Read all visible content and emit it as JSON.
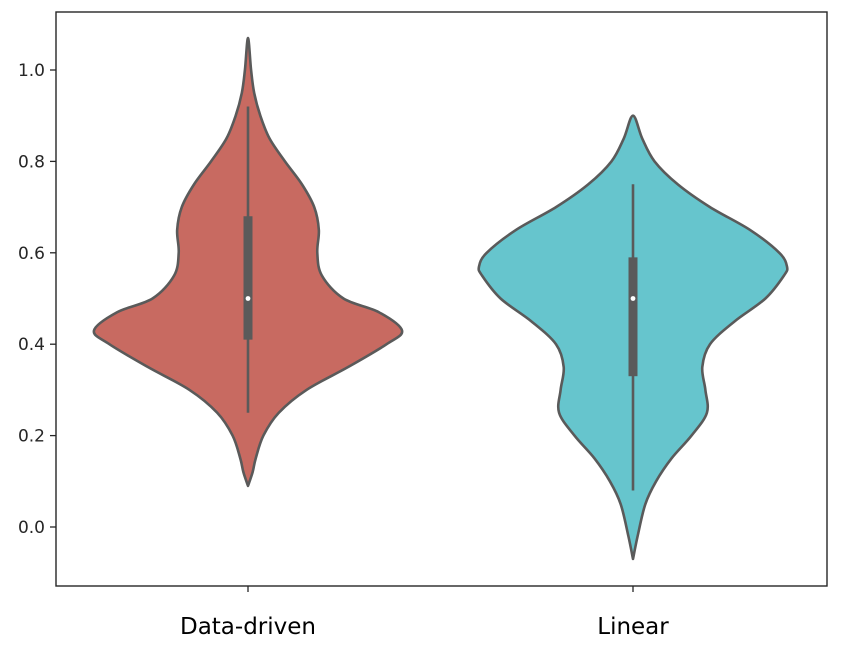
{
  "chart_data": {
    "type": "violin",
    "categories": [
      "Data-driven",
      "Linear"
    ],
    "title": "",
    "xlabel": "",
    "ylabel": "",
    "ylim": [
      -0.13,
      1.12
    ],
    "yticks": [
      0.0,
      0.2,
      0.4,
      0.6,
      0.8,
      1.0
    ],
    "ytick_labels": [
      "0.0",
      "0.2",
      "0.4",
      "0.6",
      "0.8",
      "1.0"
    ],
    "grid": false,
    "outline_color": "#5a5a5a",
    "series": [
      {
        "category": "Data-driven",
        "color": "#c86a61",
        "min": 0.25,
        "q1": 0.41,
        "median": 0.5,
        "q3": 0.68,
        "max": 0.92,
        "density_range": [
          0.09,
          1.07
        ],
        "density_profile": [
          [
            0.09,
            0.0
          ],
          [
            0.12,
            0.03
          ],
          [
            0.15,
            0.05
          ],
          [
            0.2,
            0.1
          ],
          [
            0.25,
            0.2
          ],
          [
            0.3,
            0.38
          ],
          [
            0.35,
            0.65
          ],
          [
            0.4,
            0.9
          ],
          [
            0.43,
            1.0
          ],
          [
            0.47,
            0.85
          ],
          [
            0.5,
            0.62
          ],
          [
            0.55,
            0.48
          ],
          [
            0.6,
            0.45
          ],
          [
            0.65,
            0.46
          ],
          [
            0.7,
            0.43
          ],
          [
            0.75,
            0.35
          ],
          [
            0.8,
            0.24
          ],
          [
            0.85,
            0.14
          ],
          [
            0.9,
            0.08
          ],
          [
            0.95,
            0.04
          ],
          [
            1.0,
            0.02
          ],
          [
            1.07,
            0.0
          ]
        ]
      },
      {
        "category": "Linear",
        "color": "#66c5cd",
        "min": 0.08,
        "q1": 0.33,
        "median": 0.5,
        "q3": 0.59,
        "max": 0.75,
        "density_range": [
          -0.07,
          0.9
        ],
        "density_profile": [
          [
            -0.07,
            0.0
          ],
          [
            -0.02,
            0.03
          ],
          [
            0.05,
            0.08
          ],
          [
            0.1,
            0.15
          ],
          [
            0.15,
            0.25
          ],
          [
            0.2,
            0.38
          ],
          [
            0.25,
            0.48
          ],
          [
            0.3,
            0.47
          ],
          [
            0.35,
            0.45
          ],
          [
            0.4,
            0.5
          ],
          [
            0.45,
            0.66
          ],
          [
            0.5,
            0.86
          ],
          [
            0.55,
            0.98
          ],
          [
            0.57,
            1.0
          ],
          [
            0.6,
            0.95
          ],
          [
            0.65,
            0.76
          ],
          [
            0.7,
            0.5
          ],
          [
            0.75,
            0.29
          ],
          [
            0.8,
            0.14
          ],
          [
            0.85,
            0.06
          ],
          [
            0.9,
            0.0
          ]
        ]
      }
    ]
  }
}
